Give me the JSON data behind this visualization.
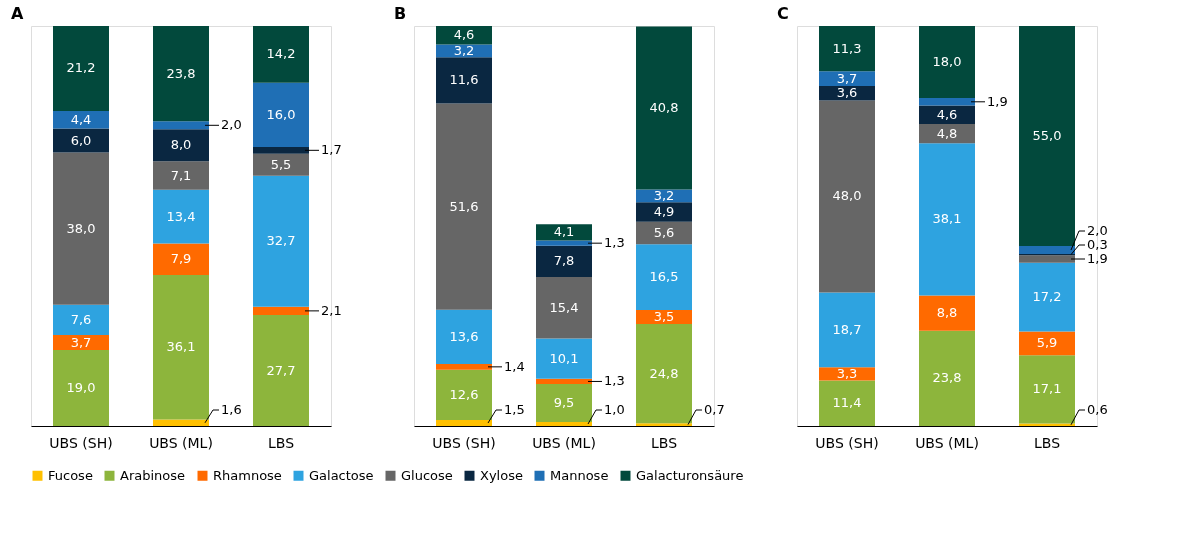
{
  "chart_data": [
    {
      "type": "bar",
      "title": "A",
      "stacked": true,
      "legend": "bottom",
      "categories": [
        "UBS (SH)",
        "UBS (ML)",
        "LBS"
      ],
      "series": [
        {
          "name": "Fucose",
          "color": "#ffc000",
          "values": [
            null,
            1.6,
            null
          ],
          "value_labels": [
            null,
            "1,6",
            null
          ]
        },
        {
          "name": "Arabinose",
          "color": "#8db53c",
          "values": [
            19.0,
            36.1,
            27.7
          ],
          "value_labels": [
            "19,0",
            "36,1",
            "27,7"
          ]
        },
        {
          "name": "Rhamnose",
          "color": "#ff6a00",
          "values": [
            3.7,
            7.9,
            2.1
          ],
          "value_labels": [
            "3,7",
            "7,9",
            "2,1"
          ]
        },
        {
          "name": "Galactose",
          "color": "#2ea3e0",
          "values": [
            7.6,
            13.4,
            32.7
          ],
          "value_labels": [
            "7,6",
            "13,4",
            "32,7"
          ]
        },
        {
          "name": "Glucose",
          "color": "#666666",
          "values": [
            38.0,
            7.1,
            5.5
          ],
          "value_labels": [
            "38,0",
            "7,1",
            "5,5"
          ]
        },
        {
          "name": "Xylose",
          "color": "#0a2741",
          "values": [
            6.0,
            8.0,
            1.7
          ],
          "value_labels": [
            "6,0",
            "8,0",
            "1,7"
          ]
        },
        {
          "name": "Mannose",
          "color": "#1f6fb5",
          "values": [
            4.4,
            2.0,
            16.0
          ],
          "value_labels": [
            "4,4",
            "2,0",
            "16,0"
          ]
        },
        {
          "name": "Galacturonsäure",
          "color": "#02493c",
          "values": [
            21.2,
            23.8,
            14.2
          ],
          "value_labels": [
            "21,2",
            "23,8",
            "14,2"
          ]
        }
      ]
    },
    {
      "type": "bar",
      "title": "B",
      "stacked": true,
      "legend": "bottom",
      "categories": [
        "UBS (SH)",
        "UBS (ML)",
        "LBS"
      ],
      "series": [
        {
          "name": "Fucose",
          "color": "#ffc000",
          "values": [
            1.5,
            1.0,
            0.7
          ],
          "value_labels": [
            "1,5",
            "1,0",
            "0,7"
          ]
        },
        {
          "name": "Arabinose",
          "color": "#8db53c",
          "values": [
            12.6,
            9.5,
            24.8
          ],
          "value_labels": [
            "12,6",
            "9,5",
            "24,8"
          ]
        },
        {
          "name": "Rhamnose",
          "color": "#ff6a00",
          "values": [
            1.4,
            1.3,
            3.5
          ],
          "value_labels": [
            "1,4",
            "1,3",
            "3,5"
          ]
        },
        {
          "name": "Galactose",
          "color": "#2ea3e0",
          "values": [
            13.6,
            10.1,
            16.5
          ],
          "value_labels": [
            "13,6",
            "10,1",
            "16,5"
          ]
        },
        {
          "name": "Glucose",
          "color": "#666666",
          "values": [
            51.6,
            15.4,
            5.6
          ],
          "value_labels": [
            "51,6",
            "15,4",
            "5,6"
          ]
        },
        {
          "name": "Xylose",
          "color": "#0a2741",
          "values": [
            11.6,
            7.8,
            4.9
          ],
          "value_labels": [
            "11,6",
            "7,8",
            "4,9"
          ]
        },
        {
          "name": "Mannose",
          "color": "#1f6fb5",
          "values": [
            3.2,
            1.3,
            3.2
          ],
          "value_labels": [
            "3,2",
            "1,3",
            "3,2"
          ]
        },
        {
          "name": "Galacturonsäure",
          "color": "#02493c",
          "values": [
            4.6,
            4.1,
            40.8
          ],
          "value_labels": [
            "4,6",
            "4,1",
            "40,8"
          ]
        }
      ]
    },
    {
      "type": "bar",
      "title": "C",
      "stacked": true,
      "legend": "bottom",
      "categories": [
        "UBS (SH)",
        "UBS (ML)",
        "LBS"
      ],
      "series": [
        {
          "name": "Fucose",
          "color": "#ffc000",
          "values": [
            null,
            null,
            0.6
          ],
          "value_labels": [
            null,
            null,
            "0,6"
          ]
        },
        {
          "name": "Arabinose",
          "color": "#8db53c",
          "values": [
            11.4,
            23.8,
            17.1
          ],
          "value_labels": [
            "11,4",
            "23,8",
            "17,1"
          ]
        },
        {
          "name": "Rhamnose",
          "color": "#ff6a00",
          "values": [
            3.3,
            8.8,
            5.9
          ],
          "value_labels": [
            "3,3",
            "8,8",
            "5,9"
          ]
        },
        {
          "name": "Galactose",
          "color": "#2ea3e0",
          "values": [
            18.7,
            38.1,
            17.2
          ],
          "value_labels": [
            "18,7",
            "38,1",
            "17,2"
          ]
        },
        {
          "name": "Glucose",
          "color": "#666666",
          "values": [
            48.0,
            4.8,
            1.9
          ],
          "value_labels": [
            "48,0",
            "4,8",
            "1,9"
          ]
        },
        {
          "name": "Xylose",
          "color": "#0a2741",
          "values": [
            3.6,
            4.6,
            0.3
          ],
          "value_labels": [
            "3,6",
            "4,6",
            "0,3"
          ]
        },
        {
          "name": "Mannose",
          "color": "#1f6fb5",
          "values": [
            3.7,
            1.9,
            2.0
          ],
          "value_labels": [
            "3,7",
            "1,9",
            "2,0"
          ]
        },
        {
          "name": "Galacturonsäure",
          "color": "#02493c",
          "values": [
            11.3,
            18.0,
            55.0
          ],
          "value_labels": [
            "11,3",
            "18,0",
            "55,0"
          ]
        }
      ]
    }
  ]
}
